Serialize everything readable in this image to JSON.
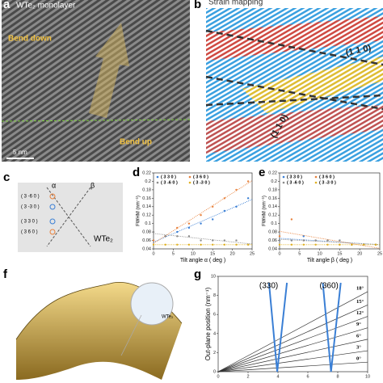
{
  "panels": {
    "a": {
      "label": "a",
      "title": "WTe₂ monolayer",
      "bend_down": "Bend down",
      "bend_up": "Bend up",
      "scale": "5 nm"
    },
    "b": {
      "label": "b",
      "title": "Strain mapping",
      "plane_top": "(1 1 0)",
      "plane_bottom": "(1 1 0)"
    },
    "c": {
      "label": "c",
      "alpha": "α",
      "beta": "β",
      "spots": [
        "( 3 -6 0 )",
        "( 3 -3 0 )",
        "( 3 3 0 )",
        "( 3 6 0 )"
      ],
      "material": "WTe₂"
    },
    "d": {
      "label": "d"
    },
    "e": {
      "label": "e"
    },
    "f": {
      "label": "f",
      "material": "WTe₂"
    },
    "g": {
      "label": "g"
    }
  },
  "chart_data": [
    {
      "type": "scatter",
      "xlabel": "Tilt angle α ( deg )",
      "ylabel": "FWHM (nm⁻¹)",
      "x": [
        0,
        3,
        6,
        9,
        12,
        15,
        18,
        21,
        24
      ],
      "xlim": [
        0,
        25
      ],
      "xticks": [
        0,
        5,
        10,
        15,
        20,
        25
      ],
      "ylim": [
        0.04,
        0.22
      ],
      "yticks": [
        0.04,
        0.06,
        0.08,
        0.1,
        0.12,
        0.14,
        0.16,
        0.18,
        0.2,
        0.22
      ],
      "series": [
        {
          "name": "( 3 3 0 )",
          "color": "#3a7fd5",
          "values": [
            0.06,
            0.07,
            0.08,
            0.09,
            0.1,
            0.11,
            0.13,
            0.14,
            0.16
          ]
        },
        {
          "name": "( 3 6 0 )",
          "color": "#e8803a",
          "values": [
            0.06,
            0.07,
            0.09,
            0.1,
            0.12,
            0.14,
            0.16,
            0.18,
            0.2
          ]
        },
        {
          "name": "( 3 -6 0 )",
          "color": "#8a8a8a",
          "values": [
            0.08,
            0.07,
            0.07,
            0.07,
            0.06,
            0.06,
            0.06,
            0.06,
            0.05
          ]
        },
        {
          "name": "( 3 -3 0 )",
          "color": "#e0b020",
          "values": [
            0.05,
            0.05,
            0.05,
            0.05,
            0.05,
            0.05,
            0.05,
            0.05,
            0.05
          ]
        }
      ]
    },
    {
      "type": "scatter",
      "xlabel": "Tilt angle β ( deg )",
      "ylabel": "FWHM (nm⁻¹)",
      "x": [
        0,
        3,
        6,
        9,
        12,
        15,
        18,
        21,
        24
      ],
      "xlim": [
        0,
        25
      ],
      "xticks": [
        0,
        5,
        10,
        15,
        20,
        25
      ],
      "ylim": [
        0.04,
        0.22
      ],
      "yticks": [
        0.04,
        0.06,
        0.08,
        0.1,
        0.12,
        0.14,
        0.16,
        0.18,
        0.2,
        0.22
      ],
      "series": [
        {
          "name": "( 3 3 0 )",
          "color": "#3a7fd5",
          "values": [
            0.06,
            0.06,
            0.07,
            0.06,
            0.06,
            0.06,
            0.05,
            0.05,
            0.05
          ]
        },
        {
          "name": "( 3 6 0 )",
          "color": "#e8803a",
          "values": [
            0.07,
            0.11,
            0.06,
            0.06,
            0.06,
            0.05,
            0.05,
            0.05,
            0.05
          ]
        },
        {
          "name": "( 3 -6 0 )",
          "color": "#8a8a8a",
          "values": [
            0.06,
            0.06,
            0.06,
            0.06,
            0.06,
            0.06,
            0.05,
            0.05,
            0.05
          ]
        },
        {
          "name": "( 3 -3 0 )",
          "color": "#e0b020",
          "values": [
            0.05,
            0.05,
            0.05,
            0.05,
            0.05,
            0.05,
            0.05,
            0.05,
            0.05
          ]
        }
      ]
    },
    {
      "type": "fan",
      "xlabel": "",
      "ylabel": "Out-plane position (nm⁻¹)",
      "categories": [
        "0°",
        "3°",
        "6°",
        "9°",
        "12°",
        "15°",
        "18°"
      ],
      "values": [
        1.0,
        2.2,
        3.4,
        4.6,
        5.8,
        7.0,
        8.4
      ],
      "annotations": [
        "(330)",
        "(360)"
      ],
      "xlim": [
        0,
        10
      ],
      "xticks": [
        0,
        2,
        4,
        6,
        8,
        10
      ],
      "ylim": [
        0,
        10
      ],
      "yticks": [
        0,
        2,
        4,
        6,
        8,
        10
      ]
    }
  ]
}
